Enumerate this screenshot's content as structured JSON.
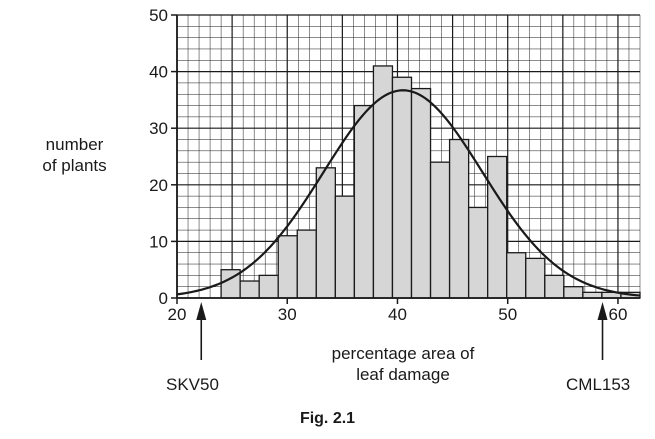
{
  "figure": {
    "caption": "Fig. 2.1"
  },
  "chart_data": {
    "type": "bar",
    "title": "",
    "xlabel": [
      "percentage area of",
      "leaf damage"
    ],
    "ylabel": [
      "number",
      "of plants"
    ],
    "xlim": [
      20,
      62
    ],
    "ylim": [
      0,
      50
    ],
    "x_ticks": [
      20,
      30,
      40,
      50,
      60
    ],
    "y_ticks": [
      0,
      10,
      20,
      30,
      40,
      50
    ],
    "grid": true,
    "bin_width": 2,
    "bins": [
      {
        "start": 24,
        "count": 5
      },
      {
        "start": 26,
        "count": 3
      },
      {
        "start": 28,
        "count": 4
      },
      {
        "start": 30,
        "count": 11
      },
      {
        "start": 32,
        "count": 12
      },
      {
        "start": 34,
        "count": 23
      },
      {
        "start": 36,
        "count": 18
      },
      {
        "start": 38,
        "count": 34
      },
      {
        "start": 40,
        "count": 41
      },
      {
        "start": 42,
        "count": 39
      },
      {
        "start": 44,
        "count": 37
      },
      {
        "start": 46,
        "count": 24
      },
      {
        "start": 48,
        "count": 28
      },
      {
        "start": 50,
        "count": 16
      },
      {
        "start": 52,
        "count": 25
      },
      {
        "start": 54,
        "count": 8
      },
      {
        "start": 56,
        "count": 7
      },
      {
        "start": 58,
        "count": 4
      },
      {
        "start": 60,
        "count": 2
      },
      {
        "start": 62,
        "count": 1
      },
      {
        "start": 64,
        "count": 1
      },
      {
        "start": 66,
        "count": 1
      }
    ],
    "fitted_curve": {
      "type": "normal",
      "peak_x": 40.5,
      "peak_y": 36.7,
      "sd": 7.2
    },
    "annotations": [
      {
        "text": "SKV50",
        "x": 22.2
      },
      {
        "text": "CML153",
        "x": 58.6
      }
    ],
    "colors": {
      "bar_fill": "#d6d6d6",
      "ink": "#1a1a1a"
    }
  }
}
